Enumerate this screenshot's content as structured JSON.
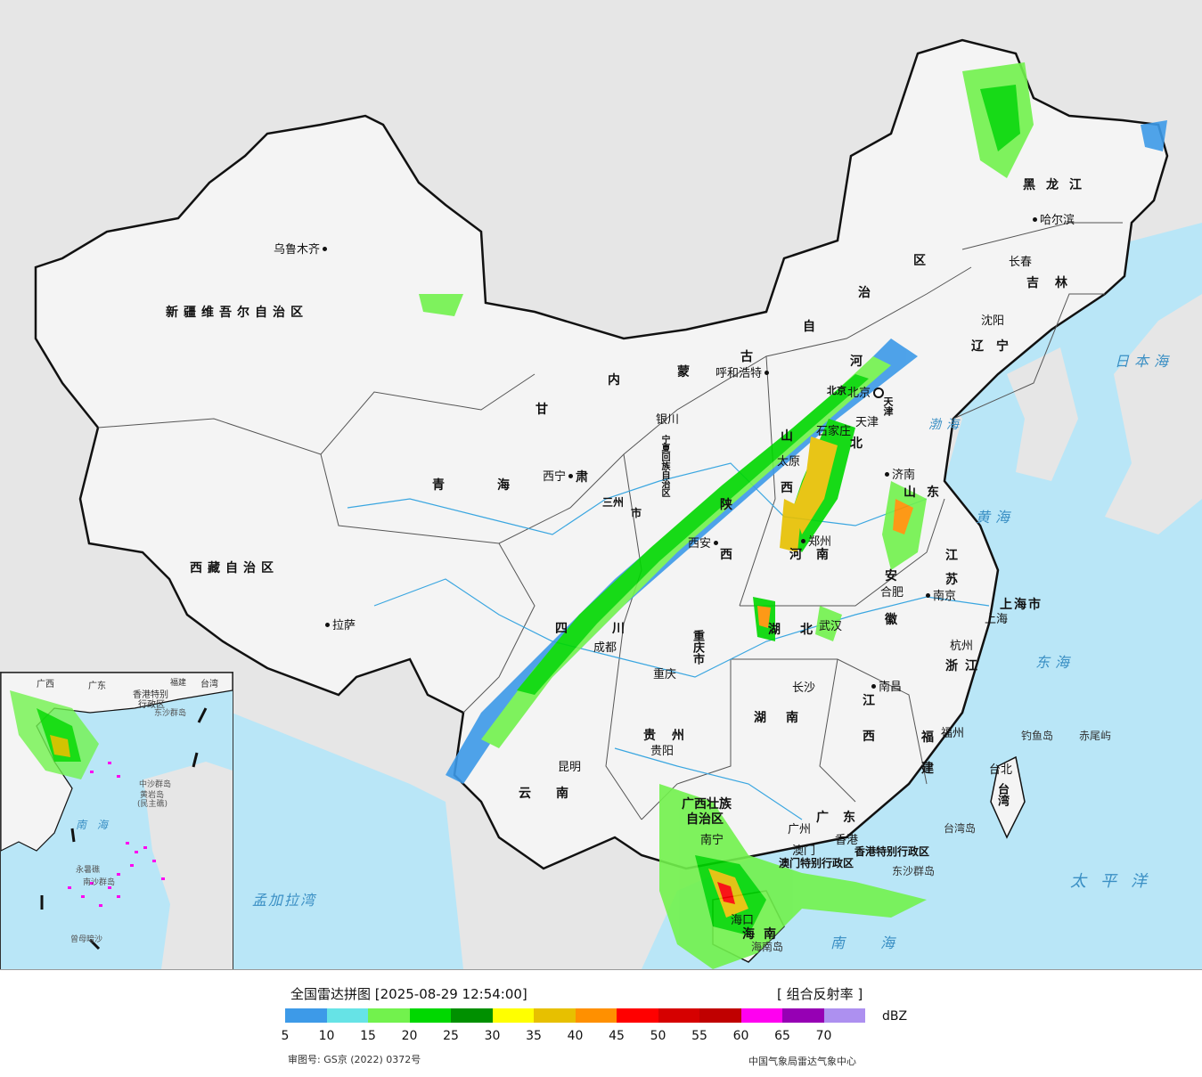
{
  "colors": {
    "sea": "#b9e6f7",
    "land_outside": "#e6e6e6",
    "china_land": "#f4f4f4",
    "border": "#111111"
  },
  "provinces": [
    {
      "id": "xinjiang",
      "text": "新疆维吾尔自治区"
    },
    {
      "id": "xizang",
      "text": "西藏自治区"
    },
    {
      "id": "qinghai-1",
      "text": "青"
    },
    {
      "id": "qinghai-2",
      "text": "海"
    },
    {
      "id": "gansu-1",
      "text": "甘"
    },
    {
      "id": "gansu-2",
      "text": "肃"
    },
    {
      "id": "nmg-1",
      "text": "内"
    },
    {
      "id": "nmg-2",
      "text": "蒙"
    },
    {
      "id": "nmg-3",
      "text": "古"
    },
    {
      "id": "nmg-4",
      "text": "自"
    },
    {
      "id": "nmg-5",
      "text": "治"
    },
    {
      "id": "nmg-6",
      "text": "区"
    },
    {
      "id": "heilongjiang",
      "text": "黑龙江"
    },
    {
      "id": "jilin",
      "text": "吉林"
    },
    {
      "id": "liaoning",
      "text": "辽宁"
    },
    {
      "id": "hebei-1",
      "text": "河"
    },
    {
      "id": "hebei-2",
      "text": "北"
    },
    {
      "id": "shanxi-1",
      "text": "山"
    },
    {
      "id": "shanxi-2",
      "text": "西"
    },
    {
      "id": "shandong",
      "text": "山东"
    },
    {
      "id": "henan",
      "text": "河南"
    },
    {
      "id": "shaanxi-1",
      "text": "陕"
    },
    {
      "id": "shaanxi-2",
      "text": "西"
    },
    {
      "id": "ningxia",
      "text": "宁夏回族自治区"
    },
    {
      "id": "sichuan",
      "text": "四川"
    },
    {
      "id": "chongqing",
      "text": "重庆市"
    },
    {
      "id": "hubei",
      "text": "湖北"
    },
    {
      "id": "hunan",
      "text": "湖南"
    },
    {
      "id": "jiangxi-1",
      "text": "江"
    },
    {
      "id": "jiangxi-2",
      "text": "西"
    },
    {
      "id": "anhui-1",
      "text": "安"
    },
    {
      "id": "anhui-2",
      "text": "徽"
    },
    {
      "id": "jiangsu-1",
      "text": "江"
    },
    {
      "id": "jiangsu-2",
      "text": "苏"
    },
    {
      "id": "shanghai",
      "text": "上海市"
    },
    {
      "id": "zhejiang",
      "text": "浙江"
    },
    {
      "id": "fujian-1",
      "text": "福"
    },
    {
      "id": "fujian-2",
      "text": "建"
    },
    {
      "id": "guizhou",
      "text": "贵州"
    },
    {
      "id": "yunnan",
      "text": "云南"
    },
    {
      "id": "guangxi-1",
      "text": "广西壮族"
    },
    {
      "id": "guangxi-2",
      "text": "自治区"
    },
    {
      "id": "guangdong",
      "text": "广东"
    },
    {
      "id": "taiwan",
      "text": "台湾"
    },
    {
      "id": "hainan",
      "text": "海南"
    },
    {
      "id": "hk",
      "text": "香港特别行政区"
    },
    {
      "id": "macau",
      "text": "澳门特别行政区"
    },
    {
      "id": "beijing",
      "text": "北京"
    },
    {
      "id": "tianjin",
      "text": "天津"
    },
    {
      "id": "gansu-3",
      "text": "三州"
    },
    {
      "id": "gansu-4",
      "text": "市"
    }
  ],
  "cities": [
    {
      "id": "urumqi",
      "text": "乌鲁木齐"
    },
    {
      "id": "lhasa",
      "text": "拉萨"
    },
    {
      "id": "xining",
      "text": "西宁"
    },
    {
      "id": "yinchuan",
      "text": "银川"
    },
    {
      "id": "hohhot",
      "text": "呼和浩特"
    },
    {
      "id": "taiyuan",
      "text": "太原"
    },
    {
      "id": "shijiazhuang",
      "text": "石家庄"
    },
    {
      "id": "jinan",
      "text": "济南"
    },
    {
      "id": "zhengzhou",
      "text": "郑州"
    },
    {
      "id": "xian",
      "text": "西安"
    },
    {
      "id": "chengdu",
      "text": "成都"
    },
    {
      "id": "chongqing-c",
      "text": "重庆"
    },
    {
      "id": "wuhan",
      "text": "武汉"
    },
    {
      "id": "changsha",
      "text": "长沙"
    },
    {
      "id": "nanchang",
      "text": "南昌"
    },
    {
      "id": "hefei",
      "text": "合肥"
    },
    {
      "id": "nanjing",
      "text": "南京"
    },
    {
      "id": "shanghai-c",
      "text": "上海"
    },
    {
      "id": "hangzhou",
      "text": "杭州"
    },
    {
      "id": "fuzhou",
      "text": "福州"
    },
    {
      "id": "guiyang",
      "text": "贵阳"
    },
    {
      "id": "kunming",
      "text": "昆明"
    },
    {
      "id": "nanning",
      "text": "南宁"
    },
    {
      "id": "guangzhou",
      "text": "广州"
    },
    {
      "id": "hongkong",
      "text": "香港"
    },
    {
      "id": "macau-c",
      "text": "澳门"
    },
    {
      "id": "haikou",
      "text": "海口"
    },
    {
      "id": "taipei",
      "text": "台北"
    },
    {
      "id": "harbin",
      "text": "哈尔滨"
    },
    {
      "id": "changchun",
      "text": "长春"
    },
    {
      "id": "shenyang",
      "text": "沈阳"
    },
    {
      "id": "tianjin-c",
      "text": "天津"
    },
    {
      "id": "beijing-c",
      "text": "北京"
    }
  ],
  "seas": [
    {
      "id": "bohai",
      "text": "渤海"
    },
    {
      "id": "huanghai",
      "text": "黄海"
    },
    {
      "id": "donghai",
      "text": "东海"
    },
    {
      "id": "nanhai",
      "text": "南海"
    },
    {
      "id": "taipingyang",
      "text": "太平洋"
    },
    {
      "id": "ribenhai",
      "text": "日本海"
    },
    {
      "id": "mengjialawan",
      "text": "孟加拉湾"
    }
  ],
  "islands": [
    {
      "id": "diaoyudao",
      "text": "钓鱼岛"
    },
    {
      "id": "chiweiyu",
      "text": "赤尾屿"
    },
    {
      "id": "dongsha",
      "text": "东沙群岛"
    },
    {
      "id": "taiwandao",
      "text": "台湾岛"
    },
    {
      "id": "hainandao",
      "text": "海南岛"
    }
  ],
  "inset": {
    "labels": [
      {
        "id": "i-guangxi",
        "text": "广西"
      },
      {
        "id": "i-guangdong",
        "text": "广东"
      },
      {
        "id": "i-fujian",
        "text": "福建"
      },
      {
        "id": "i-taiwan",
        "text": "台湾"
      },
      {
        "id": "i-hk",
        "text": "香港特别"
      },
      {
        "id": "i-hk2",
        "text": "行政区"
      },
      {
        "id": "i-dongsha",
        "text": "东沙群岛"
      },
      {
        "id": "i-nanhai",
        "text": "南 海"
      },
      {
        "id": "i-zhongsha",
        "text": "中沙群岛"
      },
      {
        "id": "i-huangyan",
        "text": "黄岩岛"
      },
      {
        "id": "i-minzhu",
        "text": "(民主礁)"
      },
      {
        "id": "i-yongshu",
        "text": "永暑礁"
      },
      {
        "id": "i-nansha",
        "text": "南沙群岛"
      },
      {
        "id": "i-zengmu",
        "text": "曾母暗沙"
      }
    ]
  },
  "legend": {
    "title": "全国雷达拼图 [2025-08-29 12:54:00]",
    "product": "[ 组合反射率 ]",
    "unit": "dBZ",
    "colors": [
      "#3d9ae8",
      "#66e3e6",
      "#72f24d",
      "#00d800",
      "#009000",
      "#ffff00",
      "#e7c000",
      "#ff9000",
      "#ff0000",
      "#d60000",
      "#c00000",
      "#ff00f0",
      "#9600b4",
      "#ad90f0"
    ],
    "ticks": [
      "5",
      "10",
      "15",
      "20",
      "25",
      "30",
      "35",
      "40",
      "45",
      "50",
      "55",
      "60",
      "65",
      "70"
    ],
    "approval": "审图号: GS京 (2022) 0372号",
    "credit": "中国气象局雷达气象中心"
  }
}
